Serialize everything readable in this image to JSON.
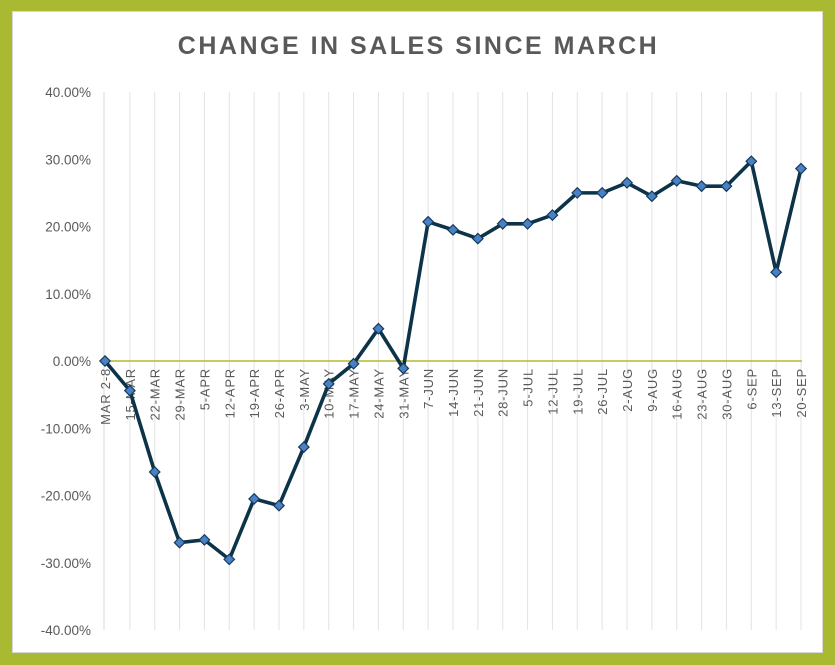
{
  "chart_data": {
    "type": "line",
    "title": "CHANGE IN SALES SINCE MARCH",
    "xlabel": "",
    "ylabel": "",
    "ylim": [
      -0.4,
      0.4
    ],
    "yticks": [
      0.4,
      0.3,
      0.2,
      0.1,
      0.0,
      -0.1,
      -0.2,
      -0.3,
      -0.4
    ],
    "ytick_labels": [
      "40.00%",
      "30.00%",
      "20.00%",
      "10.00%",
      "0.00%",
      "-10.00%",
      "-20.00%",
      "-30.00%",
      "-40.00%"
    ],
    "grid": "vertical",
    "legend": "none",
    "categories": [
      "MAR 2-8",
      "15-MAR",
      "22-MAR",
      "29-MAR",
      "5-APR",
      "12-APR",
      "19-APR",
      "26-APR",
      "3-MAY",
      "10-MAY",
      "17-MAY",
      "24-MAY",
      "31-MAY",
      "7-JUN",
      "14-JUN",
      "21-JUN",
      "28-JUN",
      "5-JUL",
      "12-JUL",
      "19-JUL",
      "26-JUL",
      "2-AUG",
      "9-AUG",
      "16-AUG",
      "23-AUG",
      "30-AUG",
      "6-SEP",
      "13-SEP",
      "20-SEP"
    ],
    "series": [
      {
        "values": [
          0.0,
          -0.044,
          -0.165,
          -0.27,
          -0.266,
          -0.295,
          -0.205,
          -0.215,
          -0.128,
          -0.034,
          -0.004,
          0.048,
          -0.011,
          0.207,
          0.195,
          0.182,
          0.204,
          0.204,
          0.217,
          0.25,
          0.25,
          0.265,
          0.245,
          0.268,
          0.26,
          0.26,
          0.297,
          0.132,
          0.286
        ]
      }
    ],
    "colors": {
      "line": "#0d3349",
      "marker_fill": "#4a81c4",
      "marker_stroke": "#163a5a",
      "zero_line": "#b5bb2b",
      "grid": "#e3e3e3",
      "axis": "#d9d9d9",
      "frame_border": "#a9b931"
    }
  }
}
